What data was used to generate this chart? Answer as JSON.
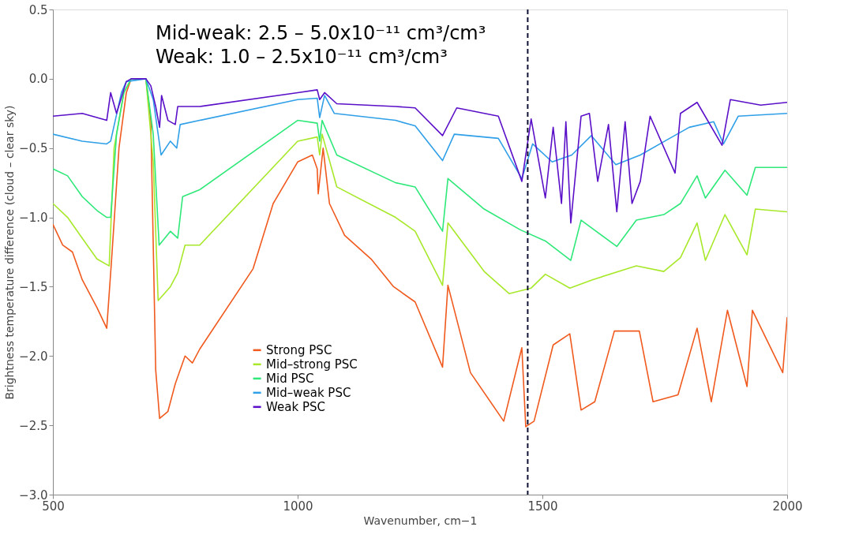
{
  "chart_data": {
    "type": "line",
    "xlabel": "Wavenumber, cm−1",
    "ylabel": "Brightness temperature difference (cloud – clear sky)",
    "annotations": [
      "Mid-weak:      2.5 – 5.0x10⁻¹¹ cm³/cm³",
      "Weak:             1.0 – 2.5x10⁻¹¹ cm³/cm³"
    ],
    "xlim": [
      500,
      2000
    ],
    "xticks": [
      500,
      1000,
      1500,
      2000
    ],
    "ylim": [
      -3.0,
      0.5
    ],
    "yticks": [
      {
        "value": 0.5,
        "label": "0.5"
      },
      {
        "value": 0,
        "label": "0.0"
      },
      {
        "value": -0.5,
        "label": "−0.5"
      },
      {
        "value": -1.0,
        "label": "−1.0"
      },
      {
        "value": -1.5,
        "label": "−1.5"
      },
      {
        "value": -2.0,
        "label": "−2.0"
      },
      {
        "value": -2.5,
        "label": "−2.5"
      },
      {
        "value": -3.0,
        "label": "−3.0"
      }
    ],
    "grid": false,
    "legend": "bottom left",
    "marker": "none",
    "line_style": "solid",
    "ref_lines": [
      {
        "axis": "x",
        "value": 1470,
        "color": "#111133",
        "line_style": "dashed"
      }
    ],
    "series": [
      {
        "name": "Strong PSC",
        "color": "#f05a1e",
        "x": [
          500,
          520,
          540,
          560,
          590,
          610,
          620,
          635,
          650,
          660,
          690,
          700,
          705,
          710,
          718,
          735,
          750,
          770,
          785,
          800,
          909,
          950,
          1000,
          1030,
          1040,
          1042,
          1052,
          1065,
          1096,
          1150,
          1196,
          1240,
          1296,
          1307,
          1353,
          1421,
          1458,
          1466,
          1483,
          1522,
          1556,
          1579,
          1607,
          1647,
          1698,
          1726,
          1777,
          1816,
          1845,
          1878,
          1918,
          1929,
          1991,
          2000
        ],
        "values": [
          -1.05,
          -1.2,
          -1.25,
          -1.45,
          -1.65,
          -1.8,
          -1.3,
          -0.5,
          -0.1,
          0,
          0,
          -0.3,
          -1.2,
          -2.1,
          -2.45,
          -2.4,
          -2.2,
          -2.0,
          -2.05,
          -1.95,
          -1.37,
          -0.9,
          -0.6,
          -0.55,
          -0.65,
          -0.83,
          -0.5,
          -0.9,
          -1.13,
          -1.3,
          -1.5,
          -1.61,
          -2.08,
          -1.49,
          -2.12,
          -2.47,
          -1.94,
          -2.51,
          -2.47,
          -1.92,
          -1.84,
          -2.39,
          -2.33,
          -1.82,
          -1.82,
          -2.33,
          -2.28,
          -1.8,
          -2.33,
          -1.67,
          -2.22,
          -1.67,
          -2.12,
          -1.72
        ]
      },
      {
        "name": "Mid–strong PSC",
        "color": "#a8e82a",
        "x": [
          500,
          530,
          560,
          590,
          615,
          625,
          645,
          660,
          690,
          705,
          715,
          740,
          755,
          770,
          800,
          1000,
          1040,
          1045,
          1050,
          1080,
          1200,
          1240,
          1296,
          1307,
          1381,
          1432,
          1477,
          1506,
          1556,
          1602,
          1692,
          1748,
          1782,
          1816,
          1833,
          1873,
          1918,
          1935,
          2000
        ],
        "values": [
          -0.9,
          -1.0,
          -1.15,
          -1.3,
          -1.35,
          -0.5,
          -0.1,
          0,
          0,
          -0.6,
          -1.6,
          -1.5,
          -1.4,
          -1.2,
          -1.2,
          -0.45,
          -0.42,
          -0.55,
          -0.4,
          -0.78,
          -1.0,
          -1.1,
          -1.49,
          -1.04,
          -1.39,
          -1.55,
          -1.51,
          -1.41,
          -1.51,
          -1.45,
          -1.35,
          -1.39,
          -1.29,
          -1.04,
          -1.31,
          -0.98,
          -1.27,
          -0.94,
          -0.96
        ]
      },
      {
        "name": "Mid PSC",
        "color": "#2ee879",
        "x": [
          500,
          530,
          560,
          590,
          610,
          618,
          630,
          645,
          660,
          690,
          705,
          717,
          740,
          755,
          765,
          800,
          1000,
          1040,
          1045,
          1050,
          1080,
          1200,
          1240,
          1296,
          1307,
          1381,
          1455,
          1506,
          1558,
          1579,
          1652,
          1692,
          1748,
          1782,
          1816,
          1833,
          1873,
          1918,
          1935,
          2000
        ],
        "values": [
          -0.65,
          -0.7,
          -0.85,
          -0.95,
          -1.0,
          -1.0,
          -0.4,
          -0.1,
          0,
          0,
          -0.4,
          -1.2,
          -1.1,
          -1.15,
          -0.85,
          -0.8,
          -0.3,
          -0.32,
          -0.45,
          -0.3,
          -0.55,
          -0.75,
          -0.78,
          -1.1,
          -0.72,
          -0.94,
          -1.09,
          -1.17,
          -1.31,
          -1.02,
          -1.21,
          -1.02,
          -0.98,
          -0.9,
          -0.7,
          -0.86,
          -0.66,
          -0.84,
          -0.64,
          -0.64
        ]
      },
      {
        "name": "Mid–weak PSC",
        "color": "#2f9fe8",
        "x": [
          500,
          560,
          610,
          618,
          640,
          650,
          690,
          705,
          721,
          740,
          753,
          760,
          800,
          1000,
          1040,
          1045,
          1055,
          1075,
          1200,
          1240,
          1296,
          1320,
          1410,
          1458,
          1480,
          1520,
          1560,
          1600,
          1650,
          1700,
          1750,
          1800,
          1850,
          1870,
          1900,
          1950,
          2000
        ],
        "values": [
          -0.4,
          -0.45,
          -0.47,
          -0.45,
          -0.1,
          -0.02,
          0,
          -0.15,
          -0.55,
          -0.45,
          -0.5,
          -0.33,
          -0.3,
          -0.15,
          -0.14,
          -0.28,
          -0.12,
          -0.25,
          -0.3,
          -0.34,
          -0.59,
          -0.4,
          -0.43,
          -0.72,
          -0.47,
          -0.6,
          -0.55,
          -0.41,
          -0.62,
          -0.55,
          -0.45,
          -0.35,
          -0.31,
          -0.47,
          -0.27,
          -0.26,
          -0.25
        ]
      },
      {
        "name": "Weak PSC",
        "color": "#5a10c8",
        "x": [
          500,
          560,
          610,
          618,
          630,
          650,
          660,
          690,
          700,
          710,
          718,
          722,
          735,
          750,
          755,
          800,
          1000,
          1040,
          1045,
          1055,
          1080,
          1200,
          1240,
          1296,
          1325,
          1410,
          1458,
          1477,
          1506,
          1522,
          1539,
          1548,
          1558,
          1579,
          1596,
          1613,
          1635,
          1652,
          1669,
          1683,
          1700,
          1720,
          1771,
          1782,
          1816,
          1867,
          1884,
          1946,
          2000
        ],
        "values": [
          -0.27,
          -0.25,
          -0.3,
          -0.1,
          -0.25,
          -0.02,
          0,
          0,
          -0.05,
          -0.2,
          -0.35,
          -0.12,
          -0.3,
          -0.33,
          -0.2,
          -0.2,
          -0.1,
          -0.08,
          -0.15,
          -0.1,
          -0.18,
          -0.2,
          -0.21,
          -0.41,
          -0.21,
          -0.27,
          -0.74,
          -0.29,
          -0.86,
          -0.35,
          -0.9,
          -0.31,
          -1.04,
          -0.27,
          -0.25,
          -0.74,
          -0.33,
          -0.96,
          -0.31,
          -0.9,
          -0.74,
          -0.27,
          -0.68,
          -0.25,
          -0.17,
          -0.48,
          -0.15,
          -0.19,
          -0.17
        ]
      }
    ]
  }
}
